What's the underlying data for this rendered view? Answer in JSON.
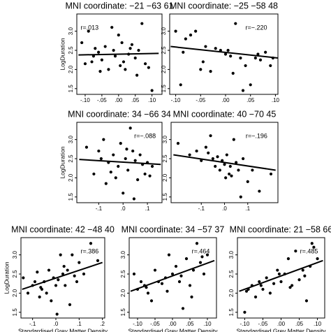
{
  "chart_data": [
    {
      "type": "scatter",
      "title": "MNI coordinate: −21 −63 61",
      "annotation": "r=.013",
      "ylabel": "LogDuration",
      "color": "#000000",
      "x": [
        -0.11,
        -0.1,
        -0.09,
        -0.08,
        -0.07,
        -0.06,
        -0.055,
        -0.05,
        -0.04,
        -0.03,
        -0.02,
        -0.015,
        -0.01,
        0,
        0.005,
        0.01,
        0.02,
        0.03,
        0.035,
        0.04,
        0.05,
        0.055,
        0.06,
        0.07,
        0.08,
        0.09,
        0.1,
        -0.075,
        0.015
      ],
      "y": [
        2.7,
        2.15,
        3.0,
        2.2,
        2.55,
        2.45,
        1.95,
        2.25,
        2.6,
        2.0,
        3.1,
        2.5,
        2.35,
        2.9,
        2.1,
        2.7,
        2.0,
        2.4,
        2.55,
        2.65,
        2.3,
        1.85,
        2.5,
        3.2,
        2.15,
        2.05,
        1.45,
        2.35,
        2.2
      ],
      "trendline": {
        "x": [
          -0.12,
          0.12
        ],
        "y": [
          2.38,
          2.42
        ]
      },
      "xlim": [
        -0.125,
        0.13
      ],
      "ylim": [
        1.35,
        3.45
      ],
      "xticks": [
        {
          "value": -0.1,
          "label": "-.10"
        },
        {
          "value": -0.05,
          "label": "-.05"
        },
        {
          "value": 0,
          "label": ".00"
        },
        {
          "value": 0.05,
          "label": ".05"
        },
        {
          "value": 0.1,
          "label": ".10"
        }
      ],
      "yticks": [
        1.5,
        {
          "value": 2,
          "label": "2.0"
        },
        2.5,
        {
          "value": 3,
          "label": "3.0"
        }
      ]
    },
    {
      "type": "scatter",
      "title": "MNI coordinate: −25 −58 48",
      "annotation": "r=−.220",
      "color": "#000000",
      "x": [
        -0.1,
        -0.09,
        -0.08,
        -0.07,
        -0.06,
        -0.05,
        -0.04,
        -0.03,
        -0.02,
        -0.01,
        0,
        0.005,
        0.01,
        0.02,
        0.03,
        0.04,
        0.05,
        0.06,
        0.07,
        0.08,
        0.09,
        0.095,
        -0.085,
        -0.045,
        0.015,
        0.035,
        0.065
      ],
      "y": [
        3.0,
        1.6,
        2.8,
        2.9,
        3.0,
        2.0,
        2.6,
        1.95,
        2.55,
        2.5,
        2.4,
        2.5,
        2.35,
        3.2,
        2.3,
        2.1,
        1.6,
        2.3,
        2.25,
        2.45,
        2.1,
        2.3,
        2.45,
        2.2,
        1.9,
        1.45,
        2.4
      ],
      "trendline": {
        "x": [
          -0.11,
          0.105
        ],
        "y": [
          2.6,
          2.3
        ]
      },
      "xlim": [
        -0.112,
        0.105
      ],
      "ylim": [
        1.35,
        3.45
      ],
      "xticks": [
        {
          "value": -0.1,
          "label": "-.10"
        },
        {
          "value": -0.05,
          "label": "-.05"
        },
        {
          "value": 0,
          "label": ".00"
        },
        {
          "value": 0.05,
          "label": ".05"
        },
        {
          "value": 0.1,
          "label": ".10"
        }
      ],
      "yticks": [
        1.5,
        {
          "value": 2,
          "label": "2.0"
        },
        2.5,
        {
          "value": 3,
          "label": "3.0"
        }
      ]
    },
    {
      "type": "scatter",
      "title": "MNI coordinate: 34 −66 34",
      "annotation": "r=−.088",
      "ylabel": "LogDuration",
      "color": "#000000",
      "x": [
        -0.15,
        -0.12,
        -0.1,
        -0.09,
        -0.08,
        -0.06,
        -0.05,
        -0.04,
        -0.03,
        -0.02,
        -0.01,
        0,
        0.01,
        0.02,
        0.03,
        0.04,
        0.05,
        0.06,
        0.07,
        0.08,
        0.09,
        0.1,
        0.11,
        -0.07,
        0.015,
        0.045,
        0.12
      ],
      "y": [
        2.8,
        2.1,
        2.7,
        2.5,
        3.0,
        2.4,
        2.15,
        2.6,
        2.0,
        2.3,
        2.9,
        1.6,
        2.5,
        2.2,
        3.3,
        2.7,
        2.45,
        1.95,
        2.6,
        2.35,
        2.1,
        2.4,
        2.05,
        1.85,
        2.75,
        1.45,
        2.3
      ],
      "trendline": {
        "x": [
          -0.18,
          0.155
        ],
        "y": [
          2.48,
          2.35
        ]
      },
      "xlim": [
        -0.19,
        0.16
      ],
      "ylim": [
        1.35,
        3.45
      ],
      "xticks": [
        {
          "value": -0.1,
          "label": "-.1"
        },
        {
          "value": 0,
          "label": ".0"
        },
        {
          "value": 0.1,
          "label": ".1"
        }
      ],
      "yticks": [
        1.5,
        {
          "value": 2,
          "label": "2.0"
        },
        2.5,
        {
          "value": 3,
          "label": "3.0"
        }
      ]
    },
    {
      "type": "scatter",
      "title": "MNI coordinate: 40 −70 45",
      "annotation": "r=−.196",
      "color": "#000000",
      "x": [
        -0.2,
        -0.15,
        -0.12,
        -0.1,
        -0.08,
        -0.06,
        -0.05,
        -0.04,
        -0.03,
        -0.02,
        -0.01,
        0,
        0.01,
        0.02,
        0.03,
        0.04,
        0.05,
        0.06,
        0.08,
        0.1,
        0.12,
        0.15,
        0.2,
        -0.07,
        0.005,
        0.025,
        0.07
      ],
      "y": [
        2.9,
        2.6,
        2.7,
        2.45,
        2.8,
        3.1,
        2.5,
        2.3,
        2.55,
        2.2,
        2.45,
        2.35,
        2.6,
        2.1,
        2.05,
        3.0,
        2.4,
        2.2,
        2.5,
        1.9,
        2.2,
        1.65,
        2.1,
        2.65,
        2.0,
        2.3,
        1.5
      ],
      "trendline": {
        "x": [
          -0.22,
          0.22
        ],
        "y": [
          2.6,
          2.2
        ]
      },
      "xlim": [
        -0.23,
        0.23
      ],
      "ylim": [
        1.35,
        3.45
      ],
      "xticks": [
        {
          "value": -0.1,
          "label": "-.1"
        },
        {
          "value": 0,
          "label": ".0"
        },
        {
          "value": 0.1,
          "label": ".1"
        }
      ],
      "yticks": [
        1.5,
        {
          "value": 2,
          "label": "2.0"
        },
        2.5,
        {
          "value": 3,
          "label": "3.0"
        }
      ]
    },
    {
      "type": "scatter",
      "title": "MNI coordinate: 42 −48 40",
      "annotation": "r=.386",
      "ylabel": "LogDuration",
      "xlabel": "Standardised Grey Matter Density",
      "color": "#000000",
      "x": [
        -0.14,
        -0.12,
        -0.1,
        -0.09,
        -0.08,
        -0.07,
        -0.06,
        -0.05,
        -0.04,
        -0.03,
        -0.02,
        -0.01,
        0,
        0.01,
        0.02,
        0.03,
        0.04,
        0.05,
        0.06,
        0.07,
        0.08,
        0.1,
        0.12,
        0.15,
        0.18,
        -0.065,
        0.005,
        0.035,
        0.09
      ],
      "y": [
        2.4,
        2.0,
        2.2,
        2.3,
        2.55,
        1.9,
        2.1,
        2.3,
        2.0,
        2.6,
        1.8,
        2.4,
        2.2,
        2.35,
        3.0,
        2.5,
        2.2,
        2.6,
        1.7,
        3.0,
        2.45,
        2.8,
        2.5,
        3.3,
        2.85,
        2.15,
        1.45,
        2.7,
        2.3
      ],
      "trendline": {
        "x": [
          -0.145,
          0.2
        ],
        "y": [
          2.1,
          2.8
        ]
      },
      "xlim": [
        -0.15,
        0.21
      ],
      "ylim": [
        1.35,
        3.45
      ],
      "xticks": [
        {
          "value": -0.1,
          "label": "-.1"
        },
        {
          "value": 0,
          "label": ".0"
        },
        {
          "value": 0.1,
          "label": ".1"
        },
        {
          "value": 0.2,
          "label": ".2"
        }
      ],
      "yticks": [
        1.5,
        {
          "value": 2,
          "label": "2.0"
        },
        2.5,
        {
          "value": 3,
          "label": "3.0"
        }
      ]
    },
    {
      "type": "scatter",
      "title": "MNI coordinate: 34 −57 37",
      "annotation": "r=.464",
      "xlabel": "Standardised Grey Matter Density",
      "color": "#000000",
      "x": [
        -0.11,
        -0.1,
        -0.09,
        -0.08,
        -0.07,
        -0.06,
        -0.05,
        -0.04,
        -0.03,
        -0.02,
        -0.01,
        0,
        0.01,
        0.02,
        0.03,
        0.04,
        0.05,
        0.06,
        0.07,
        0.08,
        0.09,
        0.1,
        -0.075,
        -0.015,
        0.025,
        0.055,
        0.085
      ],
      "y": [
        2.5,
        2.1,
        2.3,
        2.2,
        2.0,
        1.8,
        2.6,
        2.3,
        2.25,
        2.4,
        3.0,
        2.5,
        2.7,
        2.3,
        1.6,
        2.9,
        2.2,
        2.6,
        3.3,
        2.8,
        2.5,
        3.0,
        2.15,
        2.05,
        2.45,
        1.9,
        2.95
      ],
      "trendline": {
        "x": [
          -0.12,
          0.12
        ],
        "y": [
          2.05,
          2.85
        ]
      },
      "xlim": [
        -0.124,
        0.126
      ],
      "ylim": [
        1.35,
        3.45
      ],
      "xticks": [
        {
          "value": -0.1,
          "label": "-.10"
        },
        {
          "value": -0.05,
          "label": "-.05"
        },
        {
          "value": 0,
          "label": ".00"
        },
        {
          "value": 0.05,
          "label": ".05"
        },
        {
          "value": 0.1,
          "label": ".10"
        }
      ],
      "yticks": [
        1.5,
        {
          "value": 2,
          "label": "2.0"
        },
        2.5,
        {
          "value": 3,
          "label": "3.0"
        }
      ]
    },
    {
      "type": "scatter",
      "title": "MNI coordinate: 21 −58 66",
      "annotation": "r=.485",
      "xlabel": "Standardised Grey Matter Density",
      "color": "#000000",
      "x": [
        -0.1,
        -0.09,
        -0.08,
        -0.07,
        -0.06,
        -0.05,
        -0.04,
        -0.03,
        -0.02,
        -0.01,
        0,
        0.01,
        0.02,
        0.03,
        0.04,
        0.05,
        0.06,
        0.07,
        0.08,
        0.09,
        0.1,
        -0.095,
        -0.055,
        -0.005,
        0.025,
        0.065,
        0.085
      ],
      "y": [
        1.5,
        2.1,
        2.2,
        1.9,
        2.3,
        2.1,
        2.4,
        2.0,
        2.25,
        2.6,
        2.3,
        2.5,
        2.9,
        2.2,
        3.1,
        2.35,
        2.6,
        1.8,
        2.7,
        3.2,
        2.9,
        2.05,
        2.2,
        2.5,
        2.15,
        2.45,
        3.3
      ],
      "trendline": {
        "x": [
          -0.115,
          0.115
        ],
        "y": [
          2.05,
          2.85
        ]
      },
      "xlim": [
        -0.12,
        0.12
      ],
      "ylim": [
        1.35,
        3.45
      ],
      "xticks": [
        {
          "value": -0.1,
          "label": "-.10"
        },
        {
          "value": -0.05,
          "label": "-.05"
        },
        {
          "value": 0,
          "label": ".00"
        },
        {
          "value": 0.05,
          "label": ".05"
        },
        {
          "value": 0.1,
          "label": ".10"
        }
      ],
      "yticks": [
        1.5,
        {
          "value": 2,
          "label": "2.0"
        },
        2.5,
        {
          "value": 3,
          "label": "3.0"
        }
      ]
    }
  ]
}
